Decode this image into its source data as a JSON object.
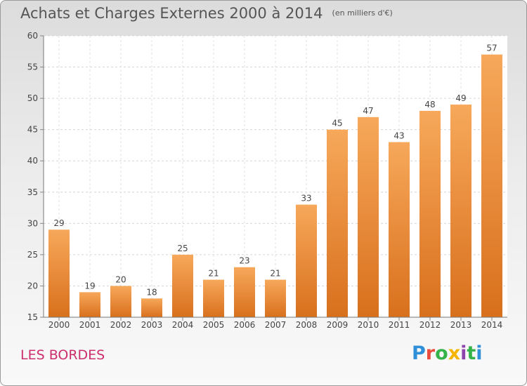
{
  "header": {
    "title": "Achats et Charges Externes 2000 à 2014",
    "subtitle": "(en milliers d'€)"
  },
  "footer": {
    "place": "LES BORDES",
    "logo_letters": [
      "P",
      "r",
      "o",
      "x",
      "i",
      "t",
      "i"
    ],
    "logo_colors": [
      "#2f8fd8",
      "#e94b3c",
      "#35b34a",
      "#f4b400",
      "#8e44ad",
      "#35b34a",
      "#2f8fd8"
    ]
  },
  "chart_data": {
    "type": "bar",
    "categories": [
      "2000",
      "2001",
      "2002",
      "2003",
      "2004",
      "2005",
      "2006",
      "2007",
      "2008",
      "2009",
      "2010",
      "2011",
      "2012",
      "2013",
      "2014"
    ],
    "values": [
      29,
      19,
      20,
      18,
      25,
      21,
      23,
      21,
      33,
      45,
      47,
      43,
      48,
      49,
      57
    ],
    "title": "Achats et Charges Externes 2000 à 2014",
    "subtitle": "(en milliers d'€)",
    "ylim": [
      15,
      60
    ],
    "yticks": [
      15,
      20,
      25,
      30,
      35,
      40,
      45,
      50,
      55,
      60
    ],
    "grid": true,
    "bar_color": "#f0903a",
    "data_labels": true
  }
}
